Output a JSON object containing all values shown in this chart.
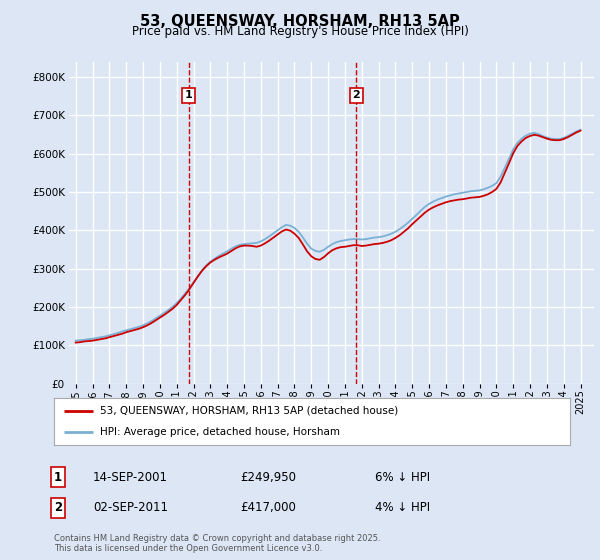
{
  "title": "53, QUEENSWAY, HORSHAM, RH13 5AP",
  "subtitle": "Price paid vs. HM Land Registry's House Price Index (HPI)",
  "legend_label_red": "53, QUEENSWAY, HORSHAM, RH13 5AP (detached house)",
  "legend_label_blue": "HPI: Average price, detached house, Horsham",
  "annotation1_date": "14-SEP-2001",
  "annotation1_price": "£249,950",
  "annotation1_note": "6% ↓ HPI",
  "annotation2_date": "02-SEP-2011",
  "annotation2_price": "£417,000",
  "annotation2_note": "4% ↓ HPI",
  "footnote": "Contains HM Land Registry data © Crown copyright and database right 2025.\nThis data is licensed under the Open Government Licence v3.0.",
  "background_color": "#dce6f5",
  "plot_bg_color": "#dce6f5",
  "red_color": "#cc0000",
  "blue_color": "#7ab0d4",
  "grid_color": "#ffffff",
  "ylim": [
    0,
    840000
  ],
  "yticks": [
    0,
    100000,
    200000,
    300000,
    400000,
    500000,
    600000,
    700000,
    800000
  ],
  "xlim_start": 1994.6,
  "xlim_end": 2025.8,
  "purchase1_x": 2001.71,
  "purchase2_x": 2011.68,
  "hpi_years": [
    1995,
    1995.25,
    1995.5,
    1995.75,
    1996,
    1996.25,
    1996.5,
    1996.75,
    1997,
    1997.25,
    1997.5,
    1997.75,
    1998,
    1998.25,
    1998.5,
    1998.75,
    1999,
    1999.25,
    1999.5,
    1999.75,
    2000,
    2000.25,
    2000.5,
    2000.75,
    2001,
    2001.25,
    2001.5,
    2001.75,
    2002,
    2002.25,
    2002.5,
    2002.75,
    2003,
    2003.25,
    2003.5,
    2003.75,
    2004,
    2004.25,
    2004.5,
    2004.75,
    2005,
    2005.25,
    2005.5,
    2005.75,
    2006,
    2006.25,
    2006.5,
    2006.75,
    2007,
    2007.25,
    2007.5,
    2007.75,
    2008,
    2008.25,
    2008.5,
    2008.75,
    2009,
    2009.25,
    2009.5,
    2009.75,
    2010,
    2010.25,
    2010.5,
    2010.75,
    2011,
    2011.25,
    2011.5,
    2011.75,
    2012,
    2012.25,
    2012.5,
    2012.75,
    2013,
    2013.25,
    2013.5,
    2013.75,
    2014,
    2014.25,
    2014.5,
    2014.75,
    2015,
    2015.25,
    2015.5,
    2015.75,
    2016,
    2016.25,
    2016.5,
    2016.75,
    2017,
    2017.25,
    2017.5,
    2017.75,
    2018,
    2018.25,
    2018.5,
    2018.75,
    2019,
    2019.25,
    2019.5,
    2019.75,
    2020,
    2020.25,
    2020.5,
    2020.75,
    2021,
    2021.25,
    2021.5,
    2021.75,
    2022,
    2022.25,
    2022.5,
    2022.75,
    2023,
    2023.25,
    2023.5,
    2023.75,
    2024,
    2024.25,
    2024.5,
    2024.75,
    2025
  ],
  "hpi_values": [
    112000,
    113000,
    114000,
    116000,
    117000,
    119000,
    121000,
    123000,
    126000,
    129000,
    132000,
    136000,
    139000,
    142000,
    145000,
    148000,
    152000,
    157000,
    163000,
    170000,
    177000,
    184000,
    192000,
    200000,
    210000,
    222000,
    235000,
    248000,
    263000,
    280000,
    295000,
    308000,
    318000,
    326000,
    333000,
    339000,
    345000,
    352000,
    358000,
    362000,
    364000,
    365000,
    366000,
    367000,
    371000,
    377000,
    384000,
    392000,
    400000,
    408000,
    414000,
    412000,
    406000,
    396000,
    381000,
    365000,
    352000,
    346000,
    344000,
    349000,
    357000,
    364000,
    369000,
    372000,
    374000,
    376000,
    377000,
    377000,
    376000,
    377000,
    379000,
    381000,
    382000,
    384000,
    387000,
    391000,
    396000,
    403000,
    411000,
    420000,
    430000,
    440000,
    451000,
    461000,
    469000,
    475000,
    480000,
    484000,
    488000,
    491000,
    494000,
    496000,
    498000,
    500000,
    502000,
    503000,
    504000,
    507000,
    511000,
    516000,
    523000,
    540000,
    563000,
    587000,
    611000,
    628000,
    639000,
    647000,
    652000,
    654000,
    651000,
    646000,
    642000,
    639000,
    638000,
    638000,
    641000,
    646000,
    652000,
    658000,
    662000
  ],
  "red_values": [
    107000,
    108000,
    110000,
    111000,
    112000,
    114000,
    116000,
    118000,
    121000,
    124000,
    127000,
    130000,
    134000,
    137000,
    140000,
    143000,
    147000,
    152000,
    158000,
    165000,
    172000,
    179000,
    187000,
    195000,
    205000,
    218000,
    231000,
    246000,
    263000,
    279000,
    294000,
    306000,
    316000,
    323000,
    329000,
    334000,
    339000,
    346000,
    353000,
    358000,
    360000,
    360000,
    359000,
    357000,
    360000,
    366000,
    373000,
    381000,
    389000,
    397000,
    402000,
    399000,
    391000,
    380000,
    363000,
    345000,
    332000,
    325000,
    323000,
    330000,
    340000,
    348000,
    353000,
    356000,
    357000,
    359000,
    361000,
    361000,
    359000,
    360000,
    362000,
    364000,
    365000,
    367000,
    370000,
    374000,
    380000,
    387000,
    396000,
    405000,
    416000,
    426000,
    436000,
    446000,
    454000,
    460000,
    465000,
    469000,
    473000,
    476000,
    478000,
    480000,
    481000,
    483000,
    485000,
    486000,
    487000,
    490000,
    494000,
    500000,
    508000,
    525000,
    550000,
    575000,
    601000,
    620000,
    632000,
    641000,
    646000,
    649000,
    647000,
    643000,
    639000,
    636000,
    635000,
    635000,
    638000,
    643000,
    649000,
    655000,
    660000
  ]
}
